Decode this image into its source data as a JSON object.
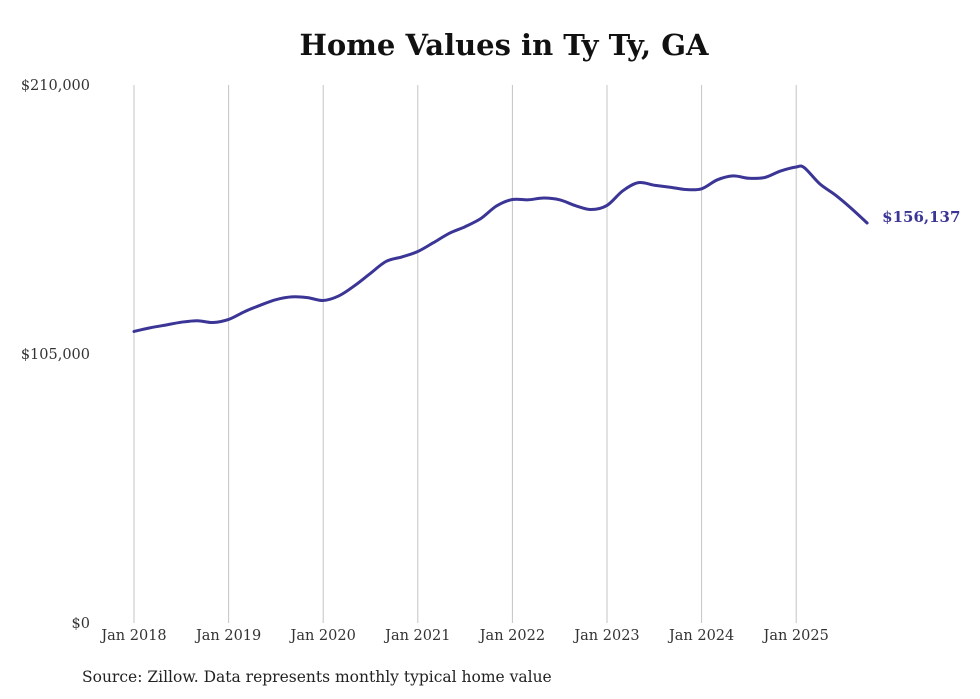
{
  "chart_data": {
    "type": "line",
    "title": "Home Values in Ty Ty, GA",
    "xlabel": "",
    "ylabel": "",
    "ylim": [
      0,
      210000
    ],
    "y_ticks": [
      {
        "value": 0,
        "label": "$0"
      },
      {
        "value": 105000,
        "label": "$105,000"
      },
      {
        "value": 210000,
        "label": "$210,000"
      }
    ],
    "x_ticks": [
      {
        "value": 2018,
        "label": "Jan 2018"
      },
      {
        "value": 2019,
        "label": "Jan 2019"
      },
      {
        "value": 2020,
        "label": "Jan 2020"
      },
      {
        "value": 2021,
        "label": "Jan 2021"
      },
      {
        "value": 2022,
        "label": "Jan 2022"
      },
      {
        "value": 2023,
        "label": "Jan 2023"
      },
      {
        "value": 2024,
        "label": "Jan 2024"
      },
      {
        "value": 2025,
        "label": "Jan 2025"
      }
    ],
    "xlim": [
      2018,
      2025.75
    ],
    "grid": "vertical",
    "series": [
      {
        "name": "Typical home value",
        "color": "#3b3596",
        "end_label": "$156,137",
        "x": [
          2018.0,
          2018.167,
          2018.333,
          2018.5,
          2018.667,
          2018.833,
          2019.0,
          2019.167,
          2019.333,
          2019.5,
          2019.667,
          2019.833,
          2020.0,
          2020.167,
          2020.333,
          2020.5,
          2020.667,
          2020.833,
          2021.0,
          2021.167,
          2021.333,
          2021.5,
          2021.667,
          2021.833,
          2022.0,
          2022.167,
          2022.333,
          2022.5,
          2022.667,
          2022.833,
          2023.0,
          2023.167,
          2023.333,
          2023.5,
          2023.667,
          2023.833,
          2024.0,
          2024.167,
          2024.333,
          2024.5,
          2024.667,
          2024.833,
          2025.0,
          2025.083,
          2025.25,
          2025.417,
          2025.583,
          2025.75
        ],
        "values": [
          113800,
          115200,
          116300,
          117400,
          118000,
          117300,
          118500,
          121500,
          124000,
          126200,
          127300,
          127000,
          125900,
          127700,
          131700,
          136500,
          141200,
          142900,
          145000,
          148500,
          152100,
          154700,
          157900,
          162800,
          165300,
          165200,
          165900,
          165200,
          162900,
          161400,
          163000,
          168700,
          171900,
          170900,
          170100,
          169200,
          169500,
          173000,
          174500,
          173600,
          173900,
          176400,
          178000,
          177800,
          171400,
          167000,
          161800,
          156137
        ]
      }
    ]
  },
  "source_note": "Source: Zillow. Data represents monthly typical home value"
}
